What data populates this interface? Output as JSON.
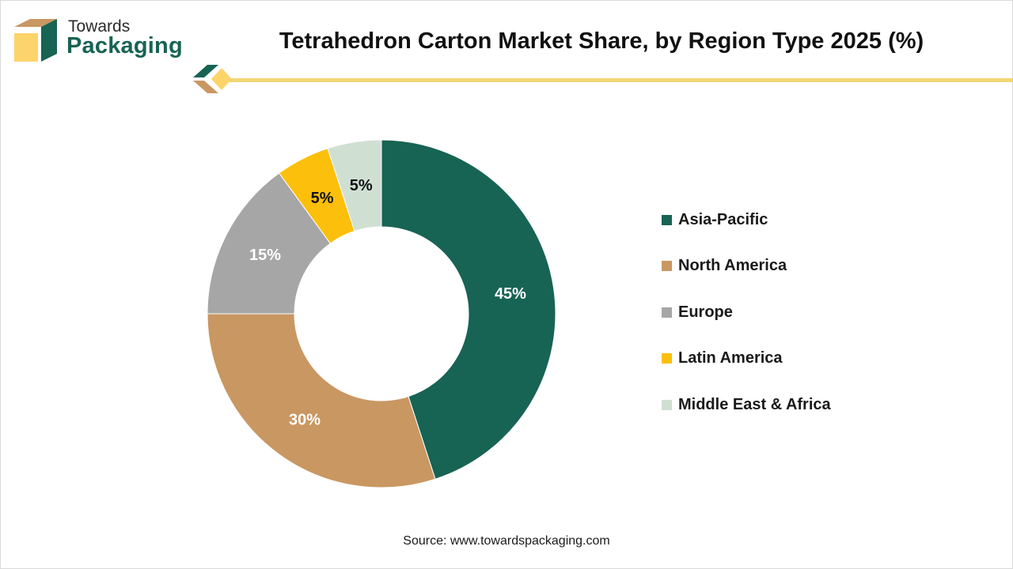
{
  "brand": {
    "line1": "Towards",
    "line2": "Packaging"
  },
  "colors": {
    "asia_pacific": "#176354",
    "north_america": "#c99762",
    "europe": "#a6a6a6",
    "latin_america": "#fcbf0b",
    "middle_east_africa": "#cfe0d3",
    "accent_line": "#f2d675"
  },
  "chart_data": {
    "type": "pie",
    "variant": "donut",
    "title": "Tetrahedron Carton Market Share, by Region Type 2025 (%)",
    "categories": [
      "Asia-Pacific",
      "North America",
      "Europe",
      "Latin America",
      "Middle East & Africa"
    ],
    "values": [
      45,
      30,
      15,
      5,
      5
    ],
    "data_labels": [
      "45%",
      "30%",
      "15%",
      "5%",
      "5%"
    ],
    "series_colors": [
      "#176354",
      "#c99762",
      "#a6a6a6",
      "#fcbf0b",
      "#cfe0d3"
    ],
    "label_colors": [
      "#ffffff",
      "#ffffff",
      "#ffffff",
      "#111111",
      "#111111"
    ],
    "legend_position": "right",
    "source": "Source: www.towardspackaging.com"
  }
}
